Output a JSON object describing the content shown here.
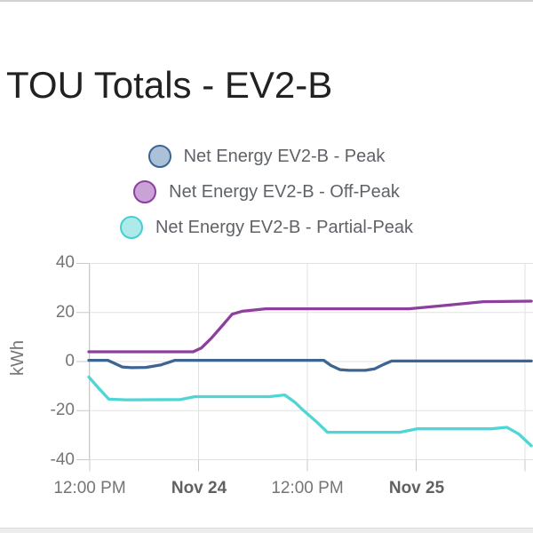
{
  "page": {
    "title": "TOU Totals - EV2-B"
  },
  "legend": [
    {
      "label": "Net Energy EV2-B - Peak",
      "fill": "#aac1d9",
      "stroke": "#3e6491"
    },
    {
      "label": "Net Energy EV2-B - Off-Peak",
      "fill": "#c9a3d7",
      "stroke": "#8d3f9d"
    },
    {
      "label": "Net Energy EV2-B - Partial-Peak",
      "fill": "#aeeaea",
      "stroke": "#44d0d0"
    }
  ],
  "chart_data": {
    "type": "line",
    "title": "TOU Totals - EV2-B",
    "ylabel": "kWh",
    "ylim": [
      -40,
      40
    ],
    "yticks": [
      40,
      20,
      0,
      -20,
      -40
    ],
    "ytick_labels": [
      "40",
      "20",
      "0",
      "-20",
      "-40"
    ],
    "x_unit": "hours since Nov 23 12:00 PM",
    "xlim_hours": [
      -0.1,
      48.8
    ],
    "grid": true,
    "legend_position": "top-center",
    "xticks": [
      {
        "label": "12:00 PM",
        "hour": 0,
        "bold": false
      },
      {
        "label": "Nov 24",
        "hour": 12,
        "bold": true
      },
      {
        "label": "12:00 PM",
        "hour": 24,
        "bold": false
      },
      {
        "label": "Nov 25",
        "hour": 36,
        "bold": true
      }
    ],
    "extra_gridline_hours": [
      48
    ],
    "series": [
      {
        "name": "Net Energy EV2-B - Peak",
        "color": "#3e6491",
        "points": [
          [
            -0.1,
            0.5
          ],
          [
            2.0,
            0.5
          ],
          [
            2.7,
            -0.7
          ],
          [
            3.6,
            -2.2
          ],
          [
            4.6,
            -2.5
          ],
          [
            6.2,
            -2.4
          ],
          [
            7.8,
            -1.4
          ],
          [
            9.4,
            0.5
          ],
          [
            25.8,
            0.5
          ],
          [
            26.6,
            -1.6
          ],
          [
            27.6,
            -3.3
          ],
          [
            28.6,
            -3.6
          ],
          [
            30.4,
            -3.6
          ],
          [
            31.4,
            -3.0
          ],
          [
            32.4,
            -1.2
          ],
          [
            33.3,
            0.2
          ],
          [
            48.7,
            0.2
          ]
        ]
      },
      {
        "name": "Net Energy EV2-B - Off-Peak",
        "color": "#8d3f9d",
        "points": [
          [
            -0.1,
            4.0
          ],
          [
            11.4,
            4.0
          ],
          [
            12.3,
            5.5
          ],
          [
            13.4,
            9.5
          ],
          [
            14.6,
            14.5
          ],
          [
            15.7,
            19.3
          ],
          [
            16.8,
            20.5
          ],
          [
            19.4,
            21.5
          ],
          [
            35.2,
            21.5
          ],
          [
            39.0,
            22.8
          ],
          [
            43.4,
            24.4
          ],
          [
            48.7,
            24.6
          ]
        ]
      },
      {
        "name": "Net Energy EV2-B - Partial-Peak",
        "color": "#4fd5d5",
        "points": [
          [
            -0.1,
            -6.3
          ],
          [
            0.9,
            -10.5
          ],
          [
            2.1,
            -15.3
          ],
          [
            4.0,
            -15.6
          ],
          [
            10.0,
            -15.5
          ],
          [
            11.6,
            -14.3
          ],
          [
            19.8,
            -14.3
          ],
          [
            21.5,
            -13.6
          ],
          [
            22.6,
            -16.5
          ],
          [
            23.6,
            -20.0
          ],
          [
            25.0,
            -24.5
          ],
          [
            26.2,
            -28.8
          ],
          [
            34.2,
            -28.8
          ],
          [
            36.1,
            -27.4
          ],
          [
            44.3,
            -27.4
          ],
          [
            46.0,
            -26.8
          ],
          [
            47.3,
            -29.5
          ],
          [
            48.7,
            -34.3
          ]
        ]
      }
    ]
  }
}
